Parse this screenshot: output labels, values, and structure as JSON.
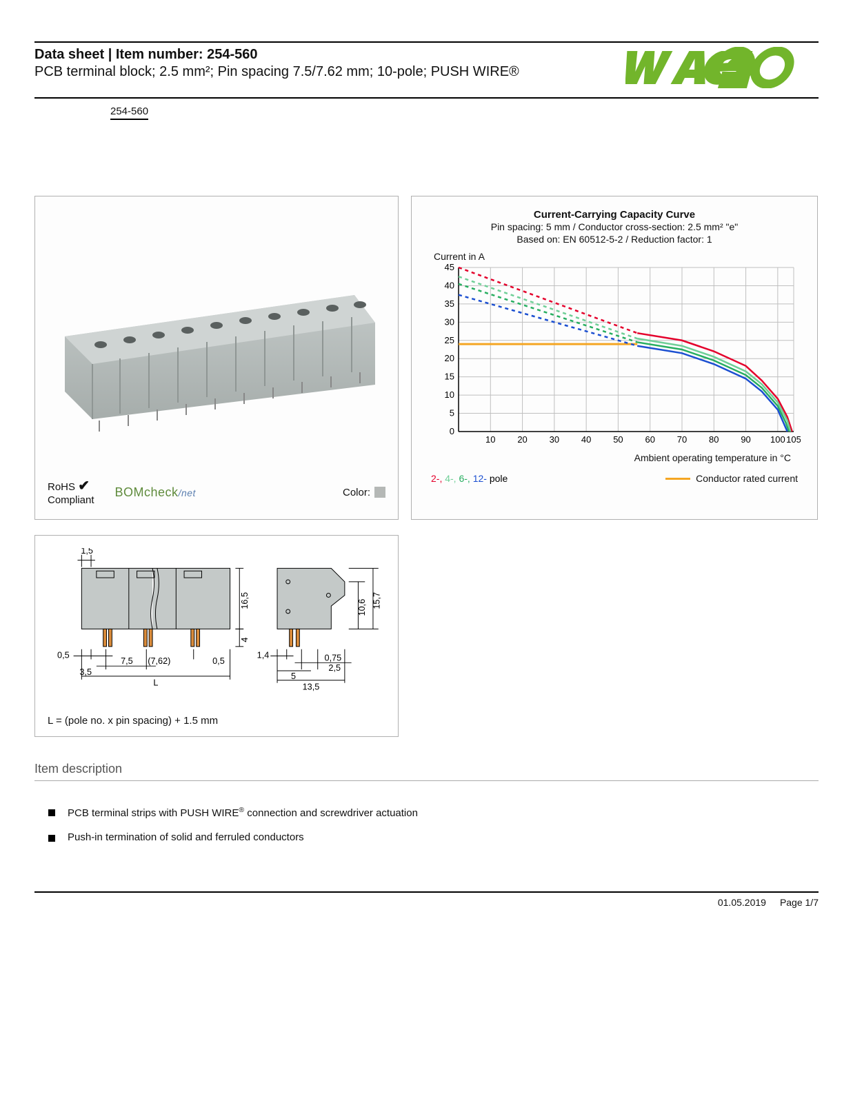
{
  "header": {
    "title": "Data sheet  |  Item number: 254-560",
    "subtitle": "PCB terminal block; 2.5 mm²; Pin spacing 7.5/7.62 mm; 10-pole; PUSH WIRE®",
    "item_link": "254-560",
    "logo_color": "#72b52b"
  },
  "left_panel": {
    "product_color": "#b6bcbb",
    "rohs_label": "RoHS",
    "compliant_label": "Compliant",
    "check_glyph": "✔",
    "bomcheck_label": "BOMcheck",
    "bomcheck_suffix": "/net",
    "color_label": "Color:",
    "color_swatch": "#b5b8b6"
  },
  "chart": {
    "title": "Current-Carrying Capacity Curve",
    "sub1": "Pin spacing: 5 mm / Conductor cross-section: 2.5 mm² \"e\"",
    "sub2": "Based on: EN 60512-5-2 / Reduction factor: 1",
    "ylabel": "Current in A",
    "xlabel": "Ambient operating temperature in °C",
    "ylim": [
      0,
      45
    ],
    "ytick_step": 5,
    "xlim": [
      0,
      105
    ],
    "xticks": [
      10,
      20,
      30,
      40,
      50,
      60,
      70,
      80,
      90,
      100,
      105
    ],
    "grid_color": "#bfbfbf",
    "axis_color": "#000000",
    "background_color": "#ffffff",
    "line_width": 2.5,
    "series": [
      {
        "name": "2-pole",
        "color": "#e4002b",
        "dashed_until_x": 56,
        "points": [
          [
            0,
            45
          ],
          [
            56,
            27
          ],
          [
            70,
            25
          ],
          [
            80,
            22
          ],
          [
            90,
            18
          ],
          [
            95,
            14
          ],
          [
            100,
            9
          ],
          [
            103,
            4
          ],
          [
            104.5,
            0
          ]
        ]
      },
      {
        "name": "4-pole",
        "color": "#6fcf97",
        "dashed_until_x": 56,
        "points": [
          [
            0,
            42.5
          ],
          [
            56,
            25.5
          ],
          [
            70,
            23.5
          ],
          [
            80,
            20.5
          ],
          [
            90,
            16.5
          ],
          [
            95,
            13
          ],
          [
            100,
            8
          ],
          [
            103,
            3
          ],
          [
            104,
            0
          ]
        ]
      },
      {
        "name": "6-pole",
        "color": "#27ae60",
        "dashed_until_x": 56,
        "points": [
          [
            0,
            40.5
          ],
          [
            56,
            24.5
          ],
          [
            70,
            22.5
          ],
          [
            80,
            19.5
          ],
          [
            90,
            15.5
          ],
          [
            95,
            12
          ],
          [
            100,
            7
          ],
          [
            102.5,
            2.5
          ],
          [
            103.5,
            0
          ]
        ]
      },
      {
        "name": "12-pole",
        "color": "#1b4fd1",
        "dashed_until_x": 56,
        "points": [
          [
            0,
            37.5
          ],
          [
            56,
            23.5
          ],
          [
            70,
            21.5
          ],
          [
            80,
            18.5
          ],
          [
            90,
            14.5
          ],
          [
            95,
            11
          ],
          [
            100,
            6
          ],
          [
            102,
            2
          ],
          [
            103,
            0
          ]
        ]
      }
    ],
    "rated_current": {
      "color": "#f5a623",
      "value": 24,
      "from_x": 0,
      "to_x": 56,
      "label": "Conductor rated current"
    },
    "legend_poles": [
      {
        "label": "2-",
        "color": "#e4002b"
      },
      {
        "label": "4-",
        "color": "#6fcf97"
      },
      {
        "label": "6-",
        "color": "#27ae60"
      },
      {
        "label": "12-",
        "color": "#1b4fd1"
      }
    ],
    "legend_poles_suffix": " pole"
  },
  "dimensions": {
    "color_body": "#c4c9c8",
    "color_pin": "#d98b3a",
    "labels": {
      "top": "1,5",
      "h": "16,5",
      "pin": "4",
      "left_edge": "0,5",
      "pitch": "7,5",
      "pitch_alt": "(7,62)",
      "left_margin": "3,5",
      "right_margin": "0,5",
      "length": "L",
      "side_w": "1,4",
      "side_pin": "0,75",
      "side_gap": "2,5",
      "side_base": "5",
      "side_total": "13,5",
      "side_h1": "10,6",
      "side_h2": "15,7"
    },
    "formula": "L = (pole no. x pin spacing) + 1.5 mm"
  },
  "description": {
    "heading": "Item description",
    "bullets": [
      "PCB terminal strips with PUSH WIRE® connection and screwdriver actuation",
      "Push-in termination of solid and ferruled conductors"
    ]
  },
  "footer": {
    "date": "01.05.2019",
    "page": "Page 1/7"
  }
}
